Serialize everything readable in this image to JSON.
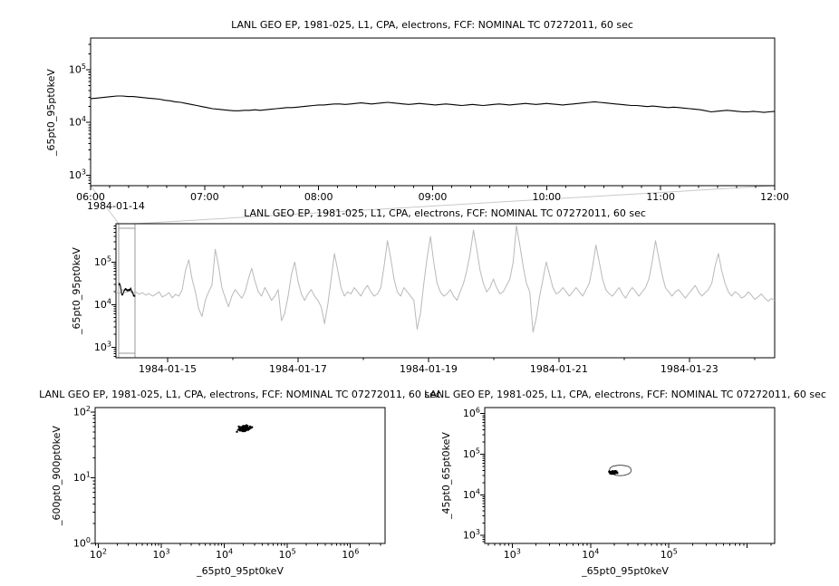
{
  "colors": {
    "line": "#000000",
    "overview_line": "#b9b9b9",
    "connector": "#c9c9c9",
    "zoom_box": "#9a9a9a",
    "frame": "#000000",
    "background": "#ffffff"
  },
  "chart_data": [
    {
      "type": "line",
      "panel": "zoom-timeseries",
      "title": "LANL GEO EP, 1981-025, L1, CPA, electrons, FCF: NOMINAL TC 07272011, 60 sec",
      "ylabel": "_65pt0_95pt0keV",
      "x_date_label": "1984-01-14",
      "xtick_labels": [
        "06:00",
        "07:00",
        "08:00",
        "09:00",
        "10:00",
        "11:00",
        "12:00"
      ],
      "y_scale": "log",
      "ytick_exponents": [
        3,
        4,
        5
      ],
      "ylim_log": [
        2.8,
        5.6
      ],
      "values_log10_flux": [
        4.45,
        4.46,
        4.47,
        4.48,
        4.49,
        4.5,
        4.5,
        4.49,
        4.49,
        4.48,
        4.47,
        4.46,
        4.45,
        4.44,
        4.42,
        4.41,
        4.39,
        4.38,
        4.36,
        4.34,
        4.32,
        4.3,
        4.28,
        4.26,
        4.25,
        4.24,
        4.23,
        4.22,
        4.22,
        4.23,
        4.23,
        4.24,
        4.23,
        4.24,
        4.25,
        4.26,
        4.27,
        4.28,
        4.28,
        4.29,
        4.3,
        4.31,
        4.32,
        4.33,
        4.33,
        4.34,
        4.35,
        4.35,
        4.34,
        4.35,
        4.36,
        4.37,
        4.36,
        4.35,
        4.36,
        4.37,
        4.38,
        4.37,
        4.36,
        4.35,
        4.34,
        4.35,
        4.36,
        4.35,
        4.34,
        4.33,
        4.34,
        4.35,
        4.34,
        4.33,
        4.32,
        4.33,
        4.34,
        4.33,
        4.32,
        4.33,
        4.34,
        4.35,
        4.34,
        4.33,
        4.34,
        4.35,
        4.36,
        4.35,
        4.34,
        4.35,
        4.36,
        4.35,
        4.34,
        4.33,
        4.34,
        4.35,
        4.36,
        4.37,
        4.38,
        4.39,
        4.38,
        4.37,
        4.36,
        4.35,
        4.34,
        4.33,
        4.32,
        4.32,
        4.31,
        4.3,
        4.31,
        4.3,
        4.29,
        4.28,
        4.29,
        4.28,
        4.27,
        4.26,
        4.25,
        4.24,
        4.22,
        4.2,
        4.21,
        4.22,
        4.23,
        4.22,
        4.21,
        4.2,
        4.2,
        4.21,
        4.2,
        4.19,
        4.2,
        4.21
      ]
    },
    {
      "type": "line",
      "panel": "overview-timeseries",
      "title": "LANL GEO EP, 1981-025, L1, CPA, electrons, FCF: NOMINAL TC 07272011, 60 sec",
      "ylabel": "_65pt0_95pt0keV",
      "xtick_labels": [
        "1984-01-15",
        "1984-01-17",
        "1984-01-19",
        "1984-01-21",
        "1984-01-23"
      ],
      "y_scale": "log",
      "ytick_exponents": [
        3,
        4,
        5
      ],
      "ylim_log": [
        2.75,
        5.9
      ],
      "time_span_days": 10.1,
      "xtick_positions_days": [
        0.7917,
        2.7917,
        4.7917,
        6.7917,
        8.7917
      ],
      "day_tick_step": 1.0,
      "zoom_window_days": [
        0.0417,
        0.2917
      ],
      "values_log10_flux": [
        4.3,
        4.25,
        4.35,
        4.28,
        4.32,
        4.26,
        4.3,
        4.24,
        4.28,
        4.22,
        4.26,
        4.2,
        4.24,
        4.3,
        4.18,
        4.22,
        4.28,
        4.16,
        4.24,
        4.2,
        4.35,
        4.8,
        5.05,
        4.6,
        4.3,
        3.9,
        3.72,
        4.1,
        4.3,
        4.45,
        5.3,
        4.9,
        4.4,
        4.15,
        3.95,
        4.2,
        4.35,
        4.25,
        4.15,
        4.3,
        4.6,
        4.85,
        4.55,
        4.3,
        4.2,
        4.4,
        4.25,
        4.1,
        4.2,
        4.35,
        3.62,
        3.8,
        4.2,
        4.7,
        5.0,
        4.55,
        4.25,
        4.1,
        4.25,
        4.35,
        4.2,
        4.1,
        3.95,
        3.55,
        4.0,
        4.6,
        5.2,
        4.8,
        4.4,
        4.2,
        4.3,
        4.25,
        4.4,
        4.3,
        4.2,
        4.35,
        4.45,
        4.3,
        4.2,
        4.25,
        4.4,
        4.9,
        5.5,
        5.1,
        4.6,
        4.3,
        4.2,
        4.4,
        4.3,
        4.2,
        4.1,
        3.42,
        3.8,
        4.5,
        5.1,
        5.6,
        5.0,
        4.5,
        4.3,
        4.2,
        4.25,
        4.35,
        4.2,
        4.1,
        4.3,
        4.5,
        4.8,
        5.2,
        5.75,
        5.3,
        4.8,
        4.5,
        4.3,
        4.4,
        4.6,
        4.4,
        4.25,
        4.3,
        4.45,
        4.6,
        5.0,
        5.85,
        5.4,
        4.9,
        4.5,
        4.3,
        3.35,
        3.7,
        4.2,
        4.6,
        5.0,
        4.7,
        4.4,
        4.25,
        4.3,
        4.4,
        4.3,
        4.2,
        4.3,
        4.4,
        4.3,
        4.2,
        4.35,
        4.5,
        4.9,
        5.4,
        5.0,
        4.6,
        4.35,
        4.25,
        4.2,
        4.3,
        4.4,
        4.25,
        4.15,
        4.3,
        4.4,
        4.3,
        4.2,
        4.3,
        4.4,
        4.6,
        5.0,
        5.5,
        5.1,
        4.7,
        4.4,
        4.3,
        4.2,
        4.3,
        4.35,
        4.25,
        4.15,
        4.25,
        4.35,
        4.45,
        4.3,
        4.2,
        4.28,
        4.35,
        4.5,
        4.9,
        5.2,
        4.8,
        4.5,
        4.3,
        4.2,
        4.3,
        4.25,
        4.15,
        4.2,
        4.3,
        4.22,
        4.12,
        4.18,
        4.25,
        4.15,
        4.08,
        4.14,
        4.1
      ]
    },
    {
      "type": "scatter",
      "panel": "scatter-left",
      "title": "LANL GEO EP, 1981-025, L1, CPA, electrons, FCF: NOMINAL TC 07272011, 60 sec",
      "xlabel": "_65pt0_95pt0keV",
      "ylabel": "_600pt0_900pt0keV",
      "x_scale": "log",
      "y_scale": "log",
      "xtick_exponents": [
        2,
        3,
        4,
        5,
        6
      ],
      "ytick_exponents": [
        0,
        1,
        2
      ],
      "xlim_log": [
        1.95,
        6.55
      ],
      "ylim_log": [
        0,
        2.07
      ],
      "points_log10": [
        [
          4.3,
          1.76
        ],
        [
          4.32,
          1.74
        ],
        [
          4.28,
          1.75
        ],
        [
          4.35,
          1.77
        ],
        [
          4.31,
          1.73
        ],
        [
          4.29,
          1.78
        ],
        [
          4.33,
          1.76
        ],
        [
          4.36,
          1.75
        ],
        [
          4.27,
          1.74
        ],
        [
          4.3,
          1.72
        ],
        [
          4.34,
          1.78
        ],
        [
          4.38,
          1.76
        ],
        [
          4.26,
          1.77
        ],
        [
          4.31,
          1.75
        ],
        [
          4.33,
          1.73
        ],
        [
          4.29,
          1.76
        ],
        [
          4.35,
          1.74
        ],
        [
          4.37,
          1.77
        ],
        [
          4.28,
          1.72
        ],
        [
          4.32,
          1.78
        ],
        [
          4.4,
          1.75
        ],
        [
          4.24,
          1.76
        ],
        [
          4.3,
          1.79
        ],
        [
          4.34,
          1.72
        ],
        [
          4.36,
          1.78
        ],
        [
          4.27,
          1.75
        ],
        [
          4.31,
          1.77
        ],
        [
          4.38,
          1.73
        ],
        [
          4.25,
          1.74
        ],
        [
          4.33,
          1.79
        ],
        [
          4.42,
          1.76
        ],
        [
          4.22,
          1.73
        ],
        [
          4.29,
          1.71
        ],
        [
          4.35,
          1.8
        ],
        [
          4.31,
          1.74
        ],
        [
          4.28,
          1.77
        ],
        [
          4.34,
          1.75
        ],
        [
          4.3,
          1.73
        ],
        [
          4.37,
          1.79
        ],
        [
          4.26,
          1.76
        ],
        [
          4.2,
          1.7
        ],
        [
          4.44,
          1.77
        ],
        [
          4.32,
          1.71
        ],
        [
          4.36,
          1.73
        ],
        [
          4.23,
          1.78
        ],
        [
          4.39,
          1.74
        ],
        [
          4.3,
          1.77
        ],
        [
          4.28,
          1.73
        ],
        [
          4.41,
          1.78
        ],
        [
          4.25,
          1.72
        ]
      ]
    },
    {
      "type": "scatter",
      "panel": "scatter-right",
      "title": "LANL GEO EP, 1981-025, L1, CPA, electrons, FCF: NOMINAL TC 07272011, 60 sec",
      "xlabel": "_65pt0_95pt0keV",
      "ylabel": "_45pt0_65pt0keV",
      "x_scale": "log",
      "y_scale": "log",
      "xtick_exponents": [
        3,
        4,
        5
      ],
      "ytick_exponents": [
        3,
        4,
        5,
        6
      ],
      "xlim_log": [
        2.65,
        6.35
      ],
      "ylim_log": [
        2.8,
        6.15
      ],
      "loop_log10": [
        [
          4.52,
          4.6
        ],
        [
          4.51,
          4.66
        ],
        [
          4.48,
          4.7
        ],
        [
          4.43,
          4.72
        ],
        [
          4.38,
          4.73
        ],
        [
          4.33,
          4.72
        ],
        [
          4.28,
          4.7
        ],
        [
          4.25,
          4.66
        ],
        [
          4.24,
          4.6
        ],
        [
          4.25,
          4.55
        ],
        [
          4.28,
          4.51
        ],
        [
          4.33,
          4.48
        ],
        [
          4.38,
          4.47
        ],
        [
          4.43,
          4.48
        ],
        [
          4.48,
          4.51
        ],
        [
          4.51,
          4.55
        ],
        [
          4.52,
          4.6
        ]
      ],
      "points_log10": [
        [
          4.3,
          4.56
        ],
        [
          4.28,
          4.54
        ],
        [
          4.32,
          4.55
        ],
        [
          4.29,
          4.57
        ],
        [
          4.31,
          4.53
        ],
        [
          4.27,
          4.55
        ],
        [
          4.33,
          4.57
        ],
        [
          4.3,
          4.52
        ],
        [
          4.26,
          4.56
        ],
        [
          4.32,
          4.58
        ],
        [
          4.29,
          4.53
        ],
        [
          4.31,
          4.56
        ],
        [
          4.28,
          4.58
        ],
        [
          4.3,
          4.54
        ],
        [
          4.25,
          4.53
        ],
        [
          4.34,
          4.54
        ],
        [
          4.27,
          4.52
        ],
        [
          4.31,
          4.58
        ],
        [
          4.29,
          4.55
        ],
        [
          4.24,
          4.57
        ]
      ]
    }
  ]
}
